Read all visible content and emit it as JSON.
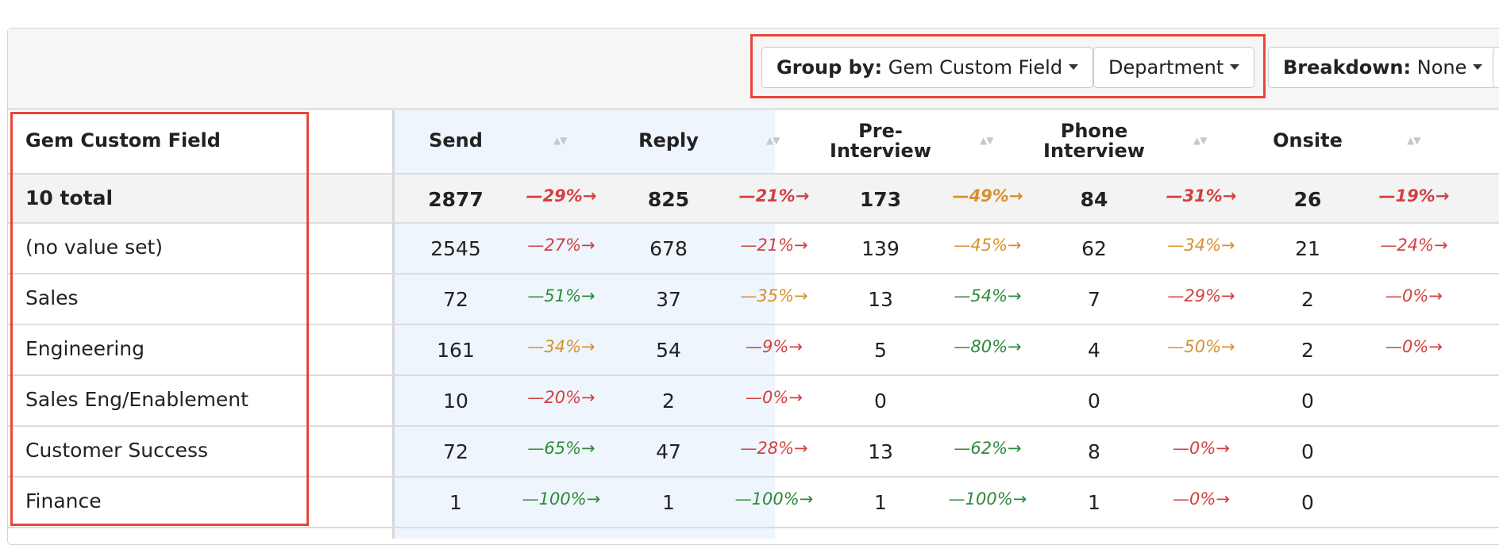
{
  "toolbar": {
    "group_by_label": "Group by:",
    "group_by_value": "Gem Custom Field",
    "department_label": "Department",
    "breakdown_label": "Breakdown:",
    "breakdown_value": "None"
  },
  "table": {
    "first_col_header": "Gem Custom Field",
    "stages": [
      "Send",
      "Reply",
      "Pre-Interview",
      "Phone Interview",
      "Onsite"
    ],
    "stage_header_lines": [
      [
        "Send"
      ],
      [
        "Reply"
      ],
      [
        "Pre-",
        "Interview"
      ],
      [
        "Phone",
        "Interview"
      ],
      [
        "Onsite"
      ]
    ],
    "total": {
      "label": "10 total",
      "values": [
        "2877",
        "825",
        "173",
        "84",
        "26"
      ],
      "rates": [
        "29%",
        "21%",
        "49%",
        "31%",
        "19%"
      ],
      "rate_colors": [
        "red",
        "red",
        "orange",
        "red",
        "red"
      ]
    },
    "rows": [
      {
        "label": "(no value set)",
        "values": [
          "2545",
          "678",
          "139",
          "62",
          "21"
        ],
        "rates": [
          "27%",
          "21%",
          "45%",
          "34%",
          "24%"
        ],
        "rate_colors": [
          "red",
          "red",
          "orange",
          "orange",
          "red"
        ]
      },
      {
        "label": "Sales",
        "values": [
          "72",
          "37",
          "13",
          "7",
          "2"
        ],
        "rates": [
          "51%",
          "35%",
          "54%",
          "29%",
          "0%"
        ],
        "rate_colors": [
          "green",
          "orange",
          "green",
          "red",
          "red"
        ]
      },
      {
        "label": "Engineering",
        "values": [
          "161",
          "54",
          "5",
          "4",
          "2"
        ],
        "rates": [
          "34%",
          "9%",
          "80%",
          "50%",
          "0%"
        ],
        "rate_colors": [
          "orange",
          "red",
          "green",
          "orange",
          "red"
        ]
      },
      {
        "label": "Sales Eng/Enablement",
        "values": [
          "10",
          "2",
          "0",
          "0",
          "0"
        ],
        "rates": [
          "20%",
          "0%",
          "",
          "",
          ""
        ],
        "rate_colors": [
          "red",
          "red",
          "",
          "",
          ""
        ]
      },
      {
        "label": "Customer Success",
        "values": [
          "72",
          "47",
          "13",
          "8",
          "0"
        ],
        "rates": [
          "65%",
          "28%",
          "62%",
          "0%",
          ""
        ],
        "rate_colors": [
          "green",
          "red",
          "green",
          "red",
          ""
        ]
      },
      {
        "label": "Finance",
        "values": [
          "1",
          "1",
          "1",
          "1",
          "0"
        ],
        "rates": [
          "100%",
          "100%",
          "100%",
          "0%",
          ""
        ],
        "rate_colors": [
          "green",
          "green",
          "green",
          "red",
          ""
        ]
      }
    ]
  },
  "colors": {
    "red": "#d34040",
    "orange": "#d8902a",
    "green": "#2f8a38",
    "highlight": "#e8463a",
    "band": "#eef5fd"
  },
  "icons": {
    "caret": "caret-down-icon",
    "sort": "sort-icon",
    "arrow": "arrow-right-icon"
  }
}
